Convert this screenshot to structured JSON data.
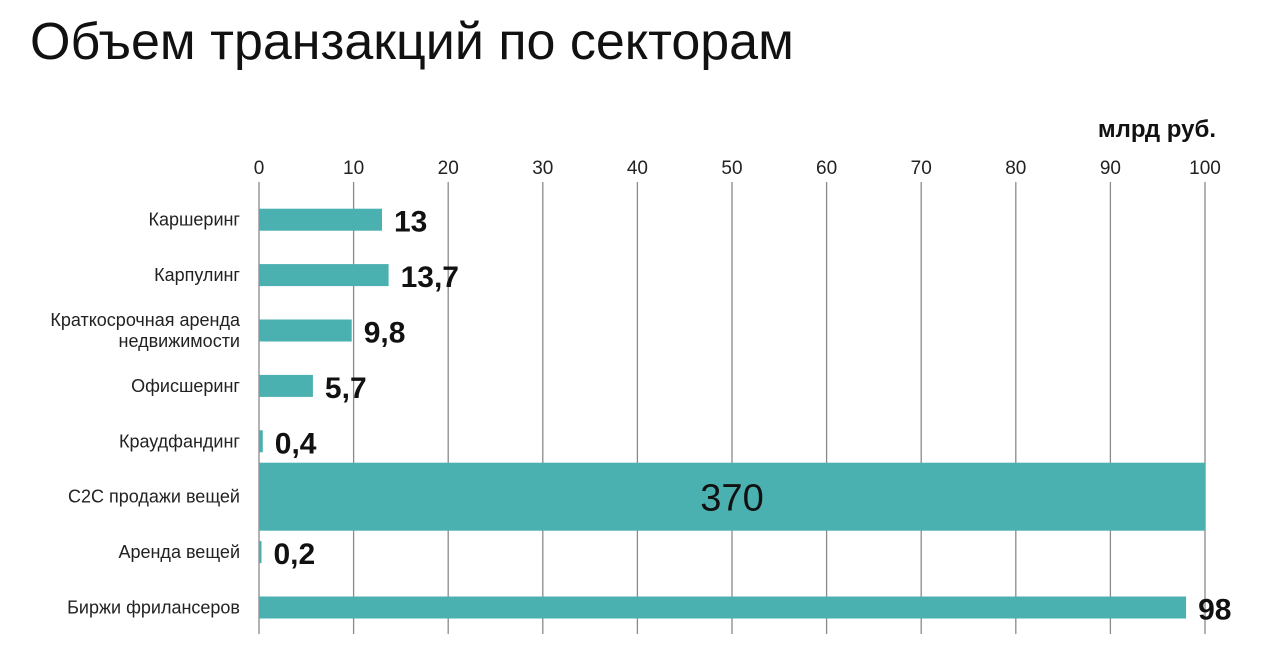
{
  "title": "Объем транзакций по секторам",
  "chart_data": {
    "type": "bar",
    "orientation": "horizontal",
    "unit": "млрд руб.",
    "xlim": [
      0,
      100
    ],
    "xticks": [
      0,
      10,
      20,
      30,
      40,
      50,
      60,
      70,
      80,
      90,
      100
    ],
    "grid": true,
    "colors": {
      "bar": "#4ab0b0",
      "grid": "#8a8a8a"
    },
    "categories": [
      [
        "Каршеринг"
      ],
      [
        "Карпулинг"
      ],
      [
        "Краткосрочная аренда",
        "недвижимости"
      ],
      [
        "Офисшеринг"
      ],
      [
        "Краудфандинг"
      ],
      [
        "C2C продажи вещей"
      ],
      [
        "Аренда вещей"
      ],
      [
        "Биржи фрилансеров"
      ]
    ],
    "values": [
      13,
      13.7,
      9.8,
      5.7,
      0.4,
      370,
      0.2,
      98
    ],
    "value_labels": [
      "13",
      "13,7",
      "9,8",
      "5,7",
      "0,4",
      "370",
      "0,2",
      "98"
    ],
    "clipped": [
      false,
      false,
      false,
      false,
      false,
      true,
      false,
      false
    ]
  }
}
